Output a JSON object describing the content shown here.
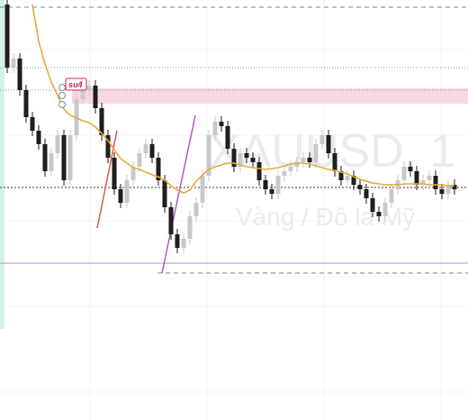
{
  "chart_data": {
    "type": "candlestick",
    "symbol": "XAUUSD, 1",
    "description": "Vàng / Đô la Mỹ",
    "annotation": "su4",
    "ylim": [
      0,
      466
    ],
    "up_color": "#c8c8c8",
    "down_color": "#1e1e1e",
    "ma_color": "#e8a93c",
    "open": [
      461,
      391,
      401,
      366,
      336,
      321,
      306,
      276,
      296,
      316,
      266,
      316,
      356,
      366,
      371,
      346,
      316,
      291,
      256,
      241,
      266,
      281,
      296,
      306,
      291,
      266,
      236,
      206,
      191,
      201,
      226,
      241,
      271,
      316,
      331,
      326,
      301,
      281,
      296,
      291,
      286,
      266,
      256,
      251,
      271,
      276,
      281,
      286,
      291,
      286,
      306,
      316,
      296,
      276,
      266,
      271,
      261,
      256,
      246,
      231,
      226,
      241,
      256,
      266,
      281,
      276,
      261,
      266,
      271,
      256,
      251,
      261
    ],
    "high": [
      467,
      407,
      407,
      372,
      342,
      327,
      312,
      302,
      322,
      322,
      322,
      362,
      372,
      377,
      377,
      352,
      322,
      297,
      262,
      272,
      287,
      302,
      312,
      312,
      297,
      272,
      242,
      212,
      207,
      232,
      247,
      277,
      322,
      337,
      337,
      332,
      307,
      302,
      302,
      297,
      292,
      272,
      262,
      277,
      282,
      287,
      292,
      297,
      297,
      312,
      322,
      322,
      302,
      282,
      277,
      277,
      267,
      262,
      252,
      237,
      247,
      262,
      272,
      287,
      287,
      282,
      272,
      277,
      277,
      262,
      267,
      267
    ],
    "low": [
      385,
      385,
      360,
      330,
      315,
      300,
      270,
      270,
      290,
      260,
      260,
      310,
      350,
      360,
      340,
      310,
      285,
      250,
      235,
      235,
      260,
      275,
      290,
      285,
      260,
      230,
      200,
      185,
      185,
      195,
      220,
      235,
      265,
      310,
      320,
      295,
      275,
      275,
      285,
      280,
      260,
      250,
      245,
      245,
      265,
      270,
      275,
      280,
      280,
      280,
      300,
      290,
      270,
      260,
      260,
      255,
      250,
      240,
      225,
      220,
      220,
      235,
      250,
      260,
      270,
      255,
      255,
      260,
      250,
      245,
      245,
      250
    ],
    "close": [
      391,
      401,
      366,
      336,
      321,
      306,
      276,
      296,
      316,
      266,
      316,
      356,
      366,
      371,
      346,
      316,
      291,
      256,
      241,
      266,
      281,
      296,
      306,
      291,
      266,
      236,
      206,
      191,
      201,
      226,
      241,
      271,
      316,
      331,
      326,
      301,
      281,
      296,
      291,
      286,
      266,
      256,
      251,
      271,
      276,
      281,
      286,
      291,
      286,
      306,
      316,
      296,
      276,
      266,
      271,
      261,
      256,
      246,
      231,
      226,
      241,
      256,
      266,
      281,
      276,
      261,
      266,
      271,
      256,
      251,
      261,
      256
    ],
    "ma": [
      null,
      null,
      null,
      null,
      461,
      420,
      395,
      375,
      360,
      345,
      338,
      335,
      332,
      330,
      325,
      318,
      310,
      300,
      290,
      285,
      280,
      278,
      275,
      272,
      270,
      266,
      260,
      255,
      252,
      255,
      265,
      272,
      278,
      281,
      283,
      285,
      285,
      283,
      281,
      280,
      279,
      278,
      279,
      280,
      282,
      284,
      285,
      285,
      284,
      282,
      280,
      278,
      277,
      275,
      273,
      270,
      267,
      265,
      263,
      262,
      261,
      261,
      261,
      262,
      262,
      262,
      262,
      261,
      261,
      261,
      260,
      260
    ]
  }
}
